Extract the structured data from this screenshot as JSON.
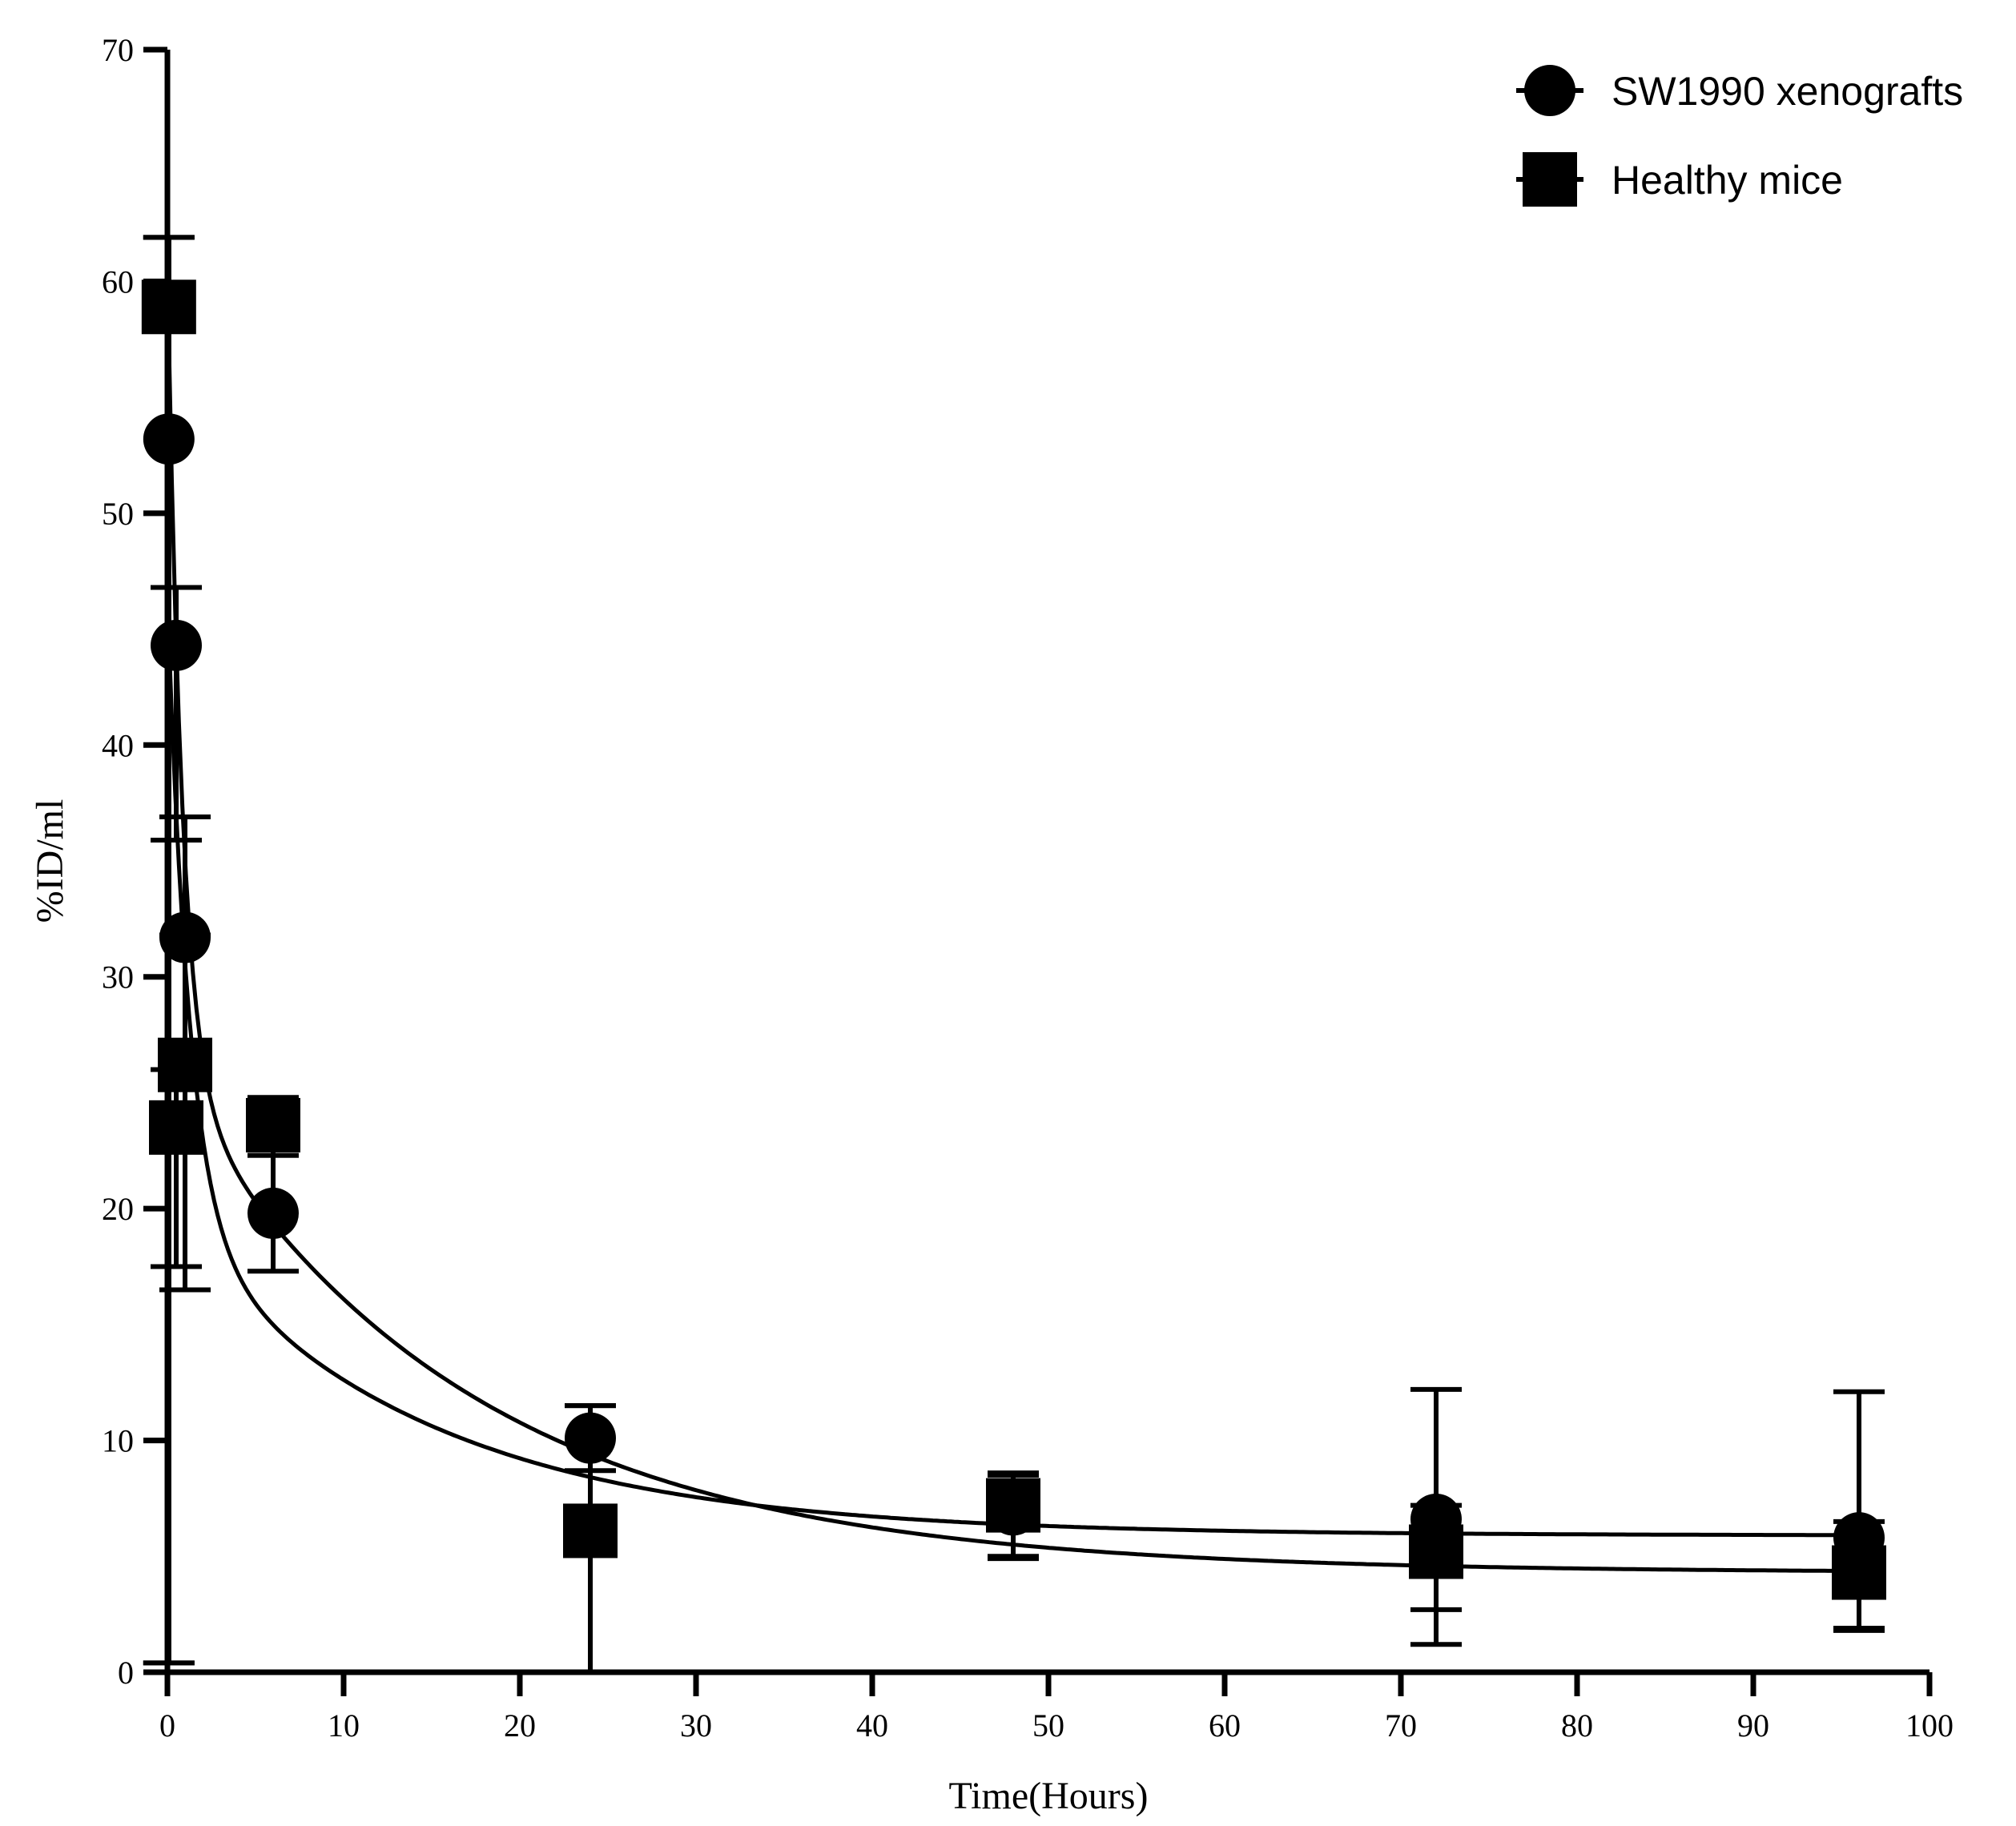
{
  "chart_data": {
    "type": "scatter",
    "title": "",
    "xlabel": "Time(Hours)",
    "ylabel": "%ID/ml",
    "xlim": [
      0,
      100
    ],
    "ylim": [
      0,
      70
    ],
    "xticks": [
      0,
      10,
      20,
      30,
      40,
      50,
      60,
      70,
      80,
      90,
      100
    ],
    "yticks": [
      0,
      10,
      20,
      30,
      40,
      50,
      60,
      70
    ],
    "xtick_labels": [
      "0",
      "10",
      "20",
      "30",
      "40",
      "50",
      "60",
      "70",
      "80",
      "90",
      "100"
    ],
    "ytick_labels": [
      "0",
      "10",
      "20",
      "30",
      "40",
      "50",
      "60",
      "70"
    ],
    "legend_position": "top-right",
    "color": "#000000",
    "series": [
      {
        "name": "SW1990 xenografts",
        "marker": "circle",
        "x": [
          0.0833,
          0.5,
          1,
          6,
          24,
          48,
          72,
          96
        ],
        "y": [
          53.2,
          44.3,
          31.7,
          19.8,
          10.1,
          7.0,
          6.6,
          5.8
        ],
        "err_low": [
          52.8,
          8.4,
          4.8,
          2.5,
          1.4,
          2.0,
          5.4,
          4.0
        ],
        "err_high": [
          8.7,
          2.5,
          5.2,
          2.5,
          1.4,
          1.5,
          5.6,
          6.3
        ],
        "fit": {
          "model": "biexponential",
          "A": 27,
          "a": 0.8,
          "B": 13.5,
          "b": 0.07,
          "C": 5.9
        }
      },
      {
        "name": "Healthy mice",
        "marker": "square",
        "x": [
          0.0833,
          0.5,
          1,
          6,
          24,
          48,
          72,
          96
        ],
        "y": [
          58.9,
          23.5,
          26.2,
          23.6,
          6.1,
          7.2,
          5.2,
          4.3
        ],
        "err_low": [
          58.5,
          6.0,
          9.7,
          1.3,
          6.1,
          2.3,
          2.5,
          2.4
        ],
        "err_high": [
          3.0,
          2.5,
          5.6,
          1.2,
          5.4,
          1.4,
          2.0,
          2.2
        ],
        "fit": {
          "model": "biexponential",
          "A": 35,
          "a": 1.2,
          "B": 21.5,
          "b": 0.06,
          "C": 4.3
        }
      }
    ]
  }
}
